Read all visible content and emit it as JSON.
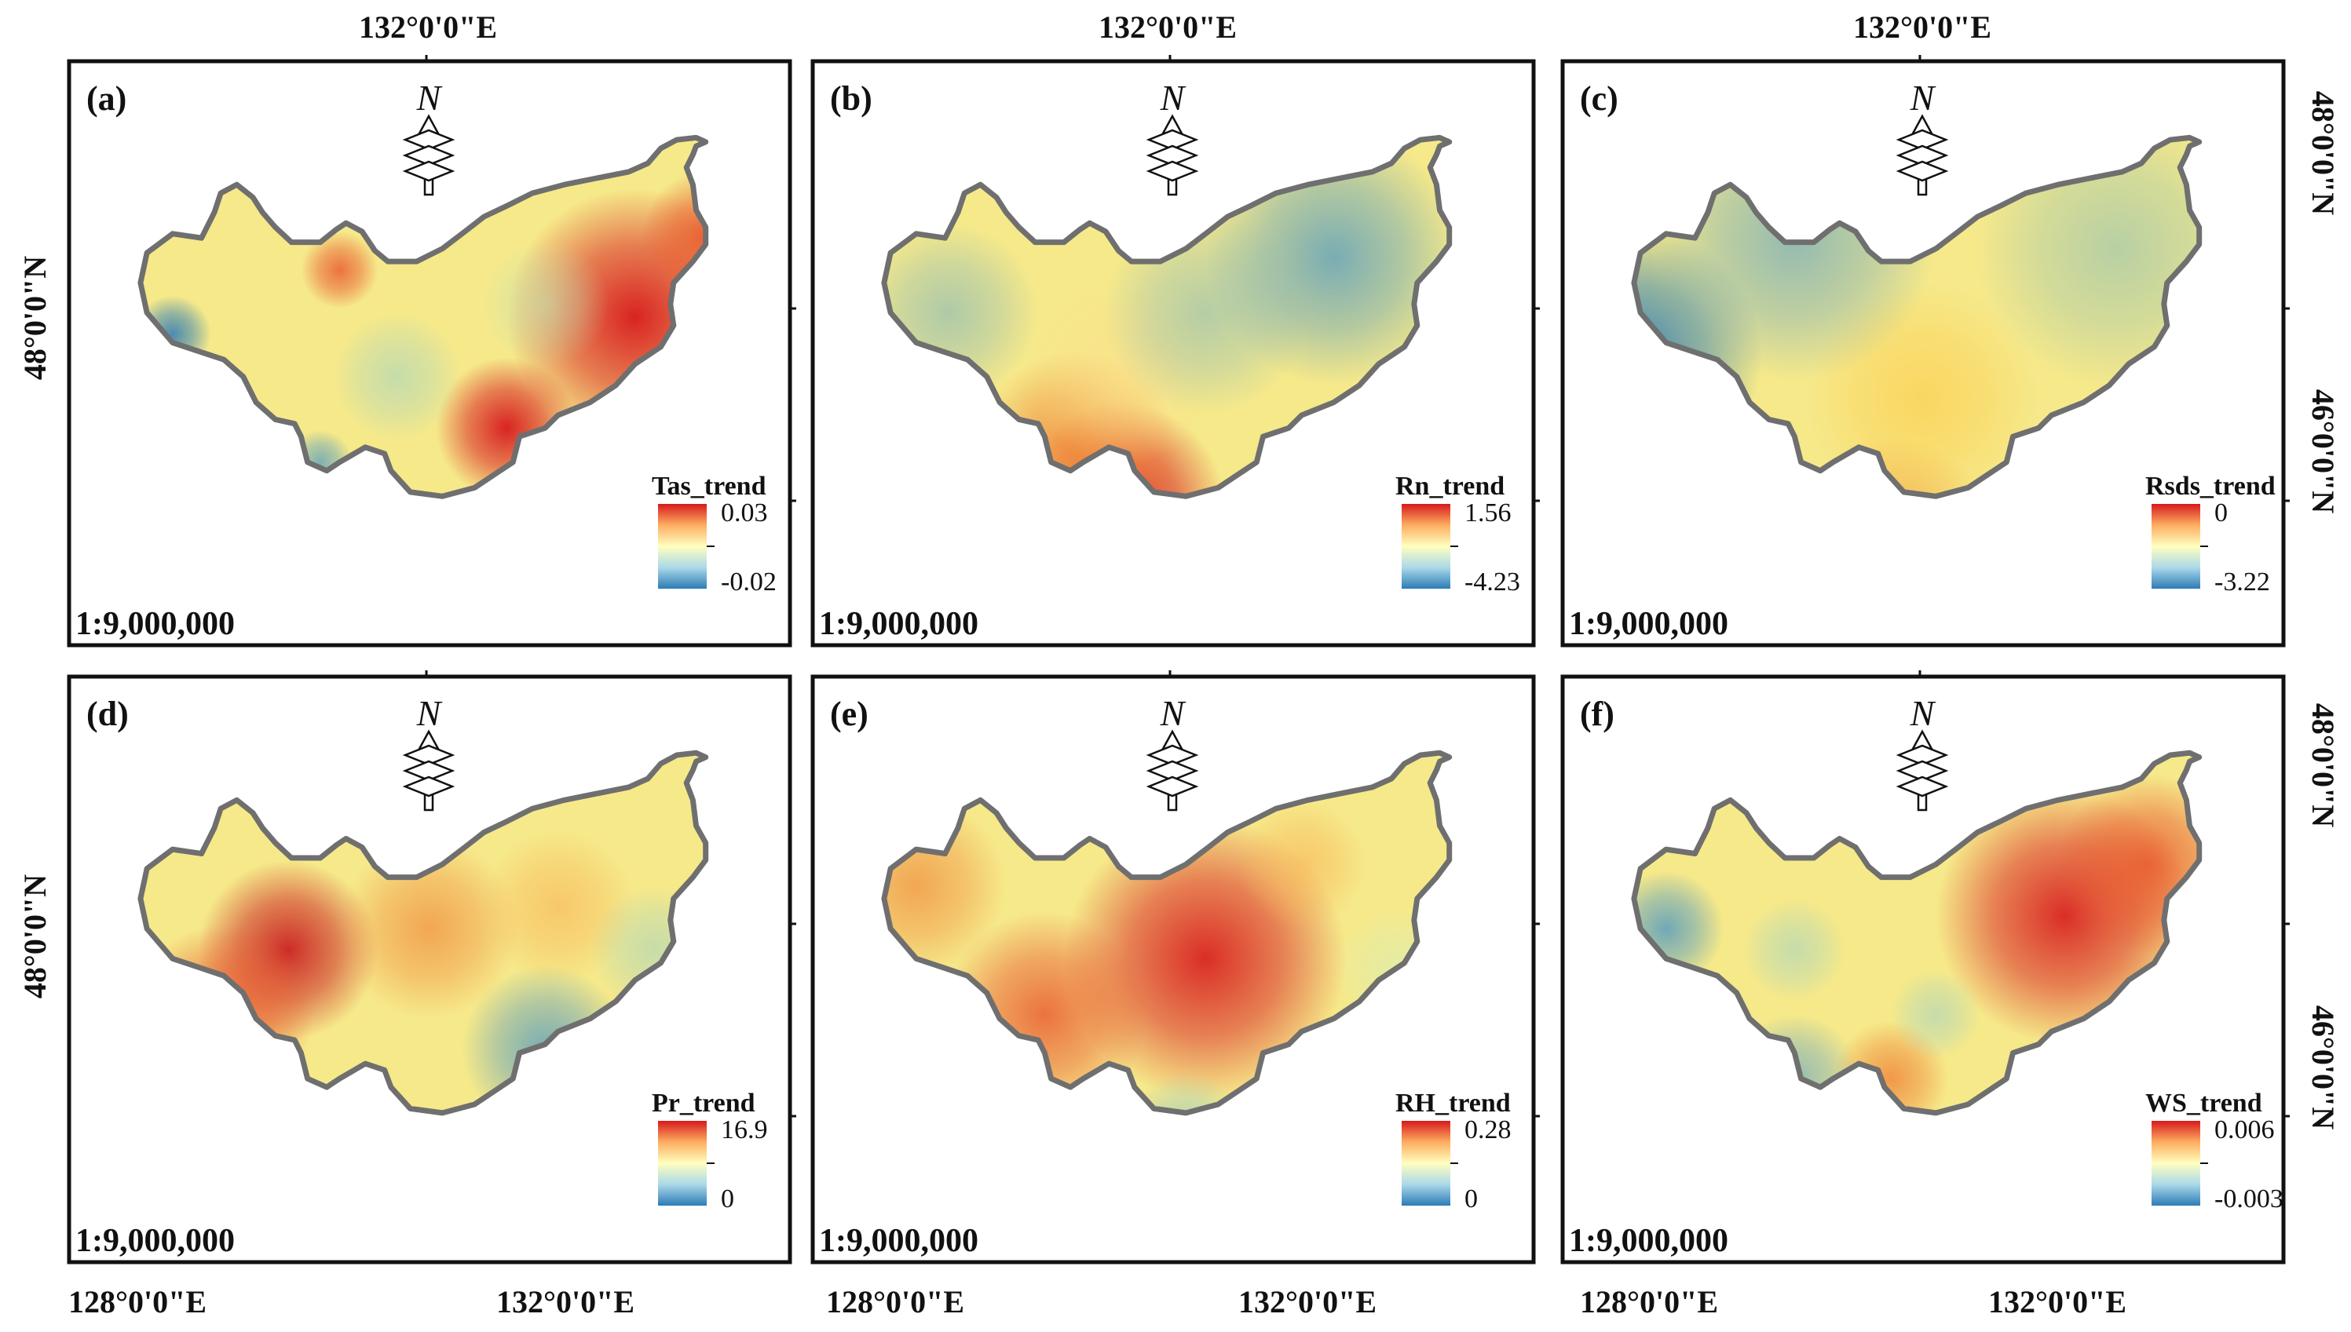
{
  "top_lon_labels": [
    "132°0'0\"E",
    "132°0'0\"E",
    "132°0'0\"E"
  ],
  "bottom_lon_labels": [
    {
      "west": "128°0'0\"E",
      "east": "132°0'0\"E"
    },
    {
      "west": "128°0'0\"E",
      "east": "132°0'0\"E"
    },
    {
      "west": "128°0'0\"E",
      "east": "132°0'0\"E"
    }
  ],
  "left_lat_labels": [
    "48°0'0\"N",
    "48°0'0\"N"
  ],
  "right_lat_labels": [
    {
      "north": "48°0'0\"N",
      "south": "46°0'0\"N"
    },
    {
      "north": "48°0'0\"N",
      "south": "46°0'0\"N"
    }
  ],
  "north_arrow_letter": "N",
  "scale_label": "1:9,000,000",
  "panels": [
    {
      "tag": "(a)",
      "legend_title": "Tas_trend",
      "max": "0.03",
      "min": "-0.02",
      "hotspots": [
        {
          "u": 0.82,
          "v": 0.36,
          "r": 0.2,
          "c": "#d7191c",
          "o": 0.95
        },
        {
          "u": 0.62,
          "v": 0.62,
          "r": 0.11,
          "c": "#d7191c",
          "o": 0.95
        },
        {
          "u": 0.93,
          "v": 0.17,
          "r": 0.1,
          "c": "#e8552c",
          "o": 0.9
        },
        {
          "u": 0.36,
          "v": 0.25,
          "r": 0.06,
          "c": "#e8552c",
          "o": 0.8
        },
        {
          "u": 0.1,
          "v": 0.4,
          "r": 0.06,
          "c": "#2c7bb6",
          "o": 0.85
        },
        {
          "u": 0.33,
          "v": 0.7,
          "r": 0.05,
          "c": "#4b98c4",
          "o": 0.7
        },
        {
          "u": 0.45,
          "v": 0.5,
          "r": 0.1,
          "c": "#a6d4c0",
          "o": 0.6
        },
        {
          "u": 0.68,
          "v": 0.33,
          "r": 0.1,
          "c": "#c2e0b0",
          "o": 0.6
        }
      ]
    },
    {
      "tag": "(b)",
      "legend_title": "Rn_trend",
      "max": "1.56",
      "min": "-4.23",
      "hotspots": [
        {
          "u": 0.42,
          "v": 0.8,
          "r": 0.16,
          "c": "#d7191c",
          "o": 0.95
        },
        {
          "u": 0.35,
          "v": 0.68,
          "r": 0.16,
          "c": "#f08a3c",
          "o": 0.9
        },
        {
          "u": 0.42,
          "v": 0.5,
          "r": 0.14,
          "c": "#fbe08a",
          "o": 0.7
        },
        {
          "u": 0.75,
          "v": 0.22,
          "r": 0.2,
          "c": "#4f98c2",
          "o": 0.75
        },
        {
          "u": 0.15,
          "v": 0.35,
          "r": 0.14,
          "c": "#7fb5bd",
          "o": 0.6
        },
        {
          "u": 0.55,
          "v": 0.35,
          "r": 0.16,
          "c": "#7fb5bd",
          "o": 0.55
        }
      ]
    },
    {
      "tag": "(c)",
      "legend_title": "Rsds_trend",
      "max": "0",
      "min": "-3.22",
      "hotspots": [
        {
          "u": 0.5,
          "v": 0.55,
          "r": 0.18,
          "c": "#fbd35a",
          "o": 0.85
        },
        {
          "u": 0.45,
          "v": 0.88,
          "r": 0.16,
          "c": "#f2a33c",
          "o": 0.75
        },
        {
          "u": 0.05,
          "v": 0.45,
          "r": 0.2,
          "c": "#2c7bb6",
          "o": 0.9
        },
        {
          "u": 0.3,
          "v": 0.18,
          "r": 0.22,
          "c": "#6aa7c2",
          "o": 0.7
        },
        {
          "u": 0.8,
          "v": 0.2,
          "r": 0.22,
          "c": "#8ebfb5",
          "o": 0.6
        }
      ]
    },
    {
      "tag": "(d)",
      "legend_title": "Pr_trend",
      "max": "16.9",
      "min": "0",
      "hotspots": [
        {
          "u": 0.28,
          "v": 0.4,
          "r": 0.14,
          "c": "#c8171b",
          "o": 0.9
        },
        {
          "u": 0.18,
          "v": 0.55,
          "r": 0.14,
          "c": "#e8552c",
          "o": 0.85
        },
        {
          "u": 0.5,
          "v": 0.35,
          "r": 0.14,
          "c": "#f08a3c",
          "o": 0.7
        },
        {
          "u": 0.7,
          "v": 0.3,
          "r": 0.12,
          "c": "#f8b255",
          "o": 0.6
        },
        {
          "u": 0.68,
          "v": 0.63,
          "r": 0.13,
          "c": "#4f98c2",
          "o": 0.75
        },
        {
          "u": 0.85,
          "v": 0.4,
          "r": 0.1,
          "c": "#a6d4c0",
          "o": 0.6
        }
      ]
    },
    {
      "tag": "(e)",
      "legend_title": "RH_trend",
      "max": "0.28",
      "min": "0",
      "hotspots": [
        {
          "u": 0.55,
          "v": 0.42,
          "r": 0.22,
          "c": "#d7191c",
          "o": 0.9
        },
        {
          "u": 0.3,
          "v": 0.55,
          "r": 0.16,
          "c": "#e8552c",
          "o": 0.8
        },
        {
          "u": 0.1,
          "v": 0.25,
          "r": 0.14,
          "c": "#f08a3c",
          "o": 0.7
        },
        {
          "u": 0.52,
          "v": 0.82,
          "r": 0.09,
          "c": "#9fccc0",
          "o": 0.75
        },
        {
          "u": 0.85,
          "v": 0.45,
          "r": 0.1,
          "c": "#dcedb0",
          "o": 0.7
        },
        {
          "u": 0.7,
          "v": 0.2,
          "r": 0.1,
          "c": "#f8b255",
          "o": 0.6
        }
      ]
    },
    {
      "tag": "(f)",
      "legend_title": "WS_trend",
      "max": "0.006",
      "min": "-0.003",
      "hotspots": [
        {
          "u": 0.72,
          "v": 0.32,
          "r": 0.2,
          "c": "#d7191c",
          "o": 0.9
        },
        {
          "u": 0.85,
          "v": 0.2,
          "r": 0.14,
          "c": "#e8552c",
          "o": 0.85
        },
        {
          "u": 0.45,
          "v": 0.7,
          "r": 0.09,
          "c": "#f08a3c",
          "o": 0.85
        },
        {
          "u": 0.1,
          "v": 0.35,
          "r": 0.09,
          "c": "#4f98c2",
          "o": 0.8
        },
        {
          "u": 0.3,
          "v": 0.7,
          "r": 0.1,
          "c": "#6aa7c2",
          "o": 0.7
        },
        {
          "u": 0.3,
          "v": 0.4,
          "r": 0.08,
          "c": "#a6d4c0",
          "o": 0.6
        },
        {
          "u": 0.52,
          "v": 0.55,
          "r": 0.07,
          "c": "#a6d4c0",
          "o": 0.6
        }
      ]
    }
  ],
  "colors": {
    "ramp": [
      "#d7191c",
      "#fdae61",
      "#ffffbf",
      "#abd9e9",
      "#2c7bb6"
    ],
    "base": "#f6e98a",
    "outline": "#6f6f6f",
    "frame": "#111111"
  }
}
